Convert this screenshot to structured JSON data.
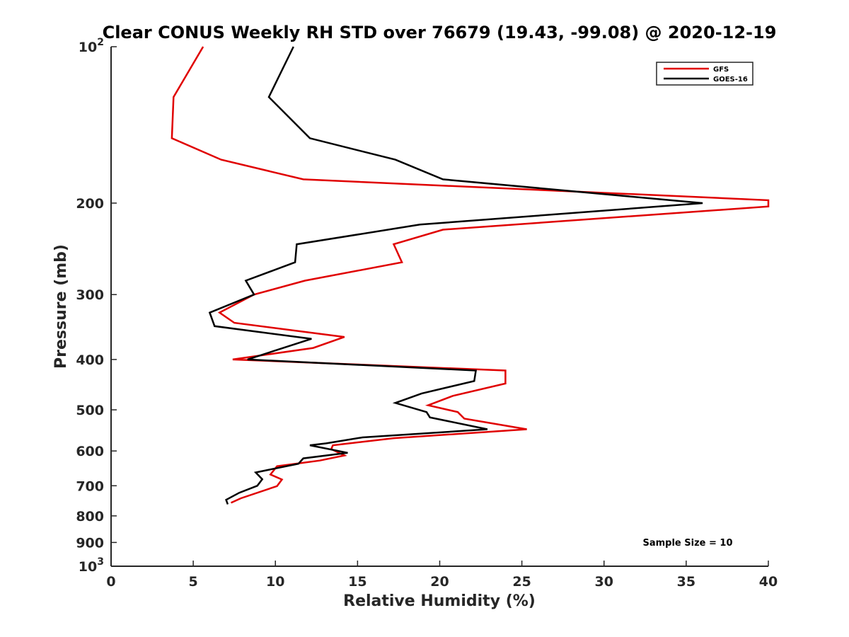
{
  "chart_data": {
    "type": "line",
    "title": "Clear CONUS Weekly RH STD over 76679 (19.43, -99.08) @ 2020-12-19",
    "xlabel": "Relative Humidity (%)",
    "ylabel": "Pressure (mb)",
    "xlim": [
      0,
      40
    ],
    "ylim": [
      100,
      1000
    ],
    "y_scale": "log",
    "y_reversed": true,
    "x_ticks": [
      0,
      5,
      10,
      15,
      20,
      25,
      30,
      35,
      40
    ],
    "y_ticks": [
      {
        "value": 100,
        "base": "10",
        "exp": "2"
      },
      {
        "value": 200,
        "label": "200"
      },
      {
        "value": 300,
        "label": "300"
      },
      {
        "value": 400,
        "label": "400"
      },
      {
        "value": 500,
        "label": "500"
      },
      {
        "value": 600,
        "label": "600"
      },
      {
        "value": 700,
        "label": "700"
      },
      {
        "value": 800,
        "label": "800"
      },
      {
        "value": 900,
        "label": "900"
      },
      {
        "value": 1000,
        "base": "10",
        "exp": "3"
      }
    ],
    "grid": false,
    "legend_position": "top-right",
    "annotation": "Sample Size = 10",
    "series": [
      {
        "name": "GFS",
        "color": "#e00000",
        "points": [
          [
            5.6,
            100
          ],
          [
            3.8,
            125
          ],
          [
            3.7,
            150
          ],
          [
            6.7,
            165
          ],
          [
            11.7,
            180
          ],
          [
            40.0,
            197.5
          ],
          [
            40.0,
            203
          ],
          [
            20.2,
            225
          ],
          [
            17.2,
            240
          ],
          [
            17.7,
            260
          ],
          [
            11.8,
            282
          ],
          [
            8.7,
            300
          ],
          [
            6.6,
            325
          ],
          [
            7.5,
            340
          ],
          [
            14.2,
            362
          ],
          [
            12.3,
            380
          ],
          [
            7.4,
            400
          ],
          [
            24.0,
            420
          ],
          [
            24.0,
            445
          ],
          [
            20.8,
            470
          ],
          [
            19.3,
            490
          ],
          [
            21.1,
            505
          ],
          [
            21.5,
            520
          ],
          [
            25.3,
            545
          ],
          [
            17.2,
            567
          ],
          [
            13.5,
            585
          ],
          [
            13.4,
            595
          ],
          [
            14.2,
            612
          ],
          [
            12.7,
            626
          ],
          [
            10.1,
            642
          ],
          [
            9.7,
            666
          ],
          [
            10.4,
            681
          ],
          [
            10.1,
            701
          ],
          [
            7.9,
            740
          ],
          [
            7.3,
            755
          ]
        ]
      },
      {
        "name": "GOES-16",
        "color": "#000000",
        "points": [
          [
            11.1,
            100
          ],
          [
            9.6,
            125
          ],
          [
            12.1,
            150
          ],
          [
            17.3,
            165
          ],
          [
            20.2,
            180
          ],
          [
            36.0,
            200
          ],
          [
            18.8,
            220
          ],
          [
            11.3,
            240
          ],
          [
            11.2,
            260
          ],
          [
            8.2,
            282
          ],
          [
            8.7,
            300
          ],
          [
            6.0,
            325
          ],
          [
            6.3,
            345
          ],
          [
            12.2,
            365
          ],
          [
            8.3,
            400
          ],
          [
            22.2,
            420
          ],
          [
            22.1,
            440
          ],
          [
            18.9,
            465
          ],
          [
            17.3,
            485
          ],
          [
            19.2,
            505
          ],
          [
            19.4,
            517
          ],
          [
            22.9,
            545
          ],
          [
            15.3,
            565
          ],
          [
            13.1,
            580
          ],
          [
            12.1,
            585
          ],
          [
            14.4,
            605
          ],
          [
            11.7,
            620
          ],
          [
            11.4,
            635
          ],
          [
            8.8,
            660
          ],
          [
            9.2,
            680
          ],
          [
            8.9,
            700
          ],
          [
            7.8,
            722
          ],
          [
            7.0,
            745
          ],
          [
            7.1,
            760
          ]
        ]
      }
    ]
  }
}
